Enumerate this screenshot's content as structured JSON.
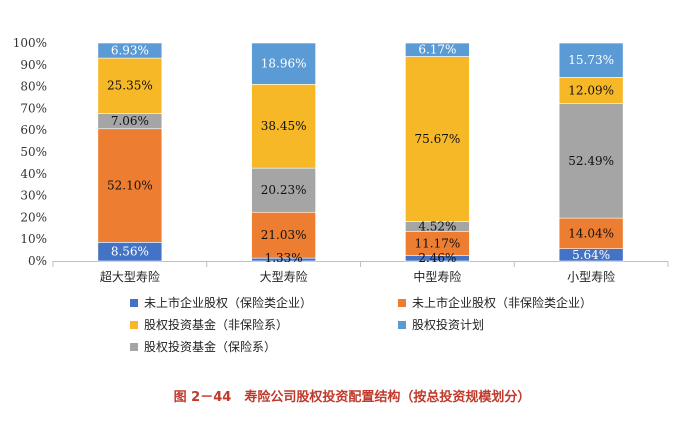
{
  "chart_data": {
    "type": "bar",
    "stacked": true,
    "categories": [
      "超大型寿险",
      "大型寿险",
      "中型寿险",
      "小型寿险"
    ],
    "ylim": [
      0,
      100
    ],
    "yticks": [
      "0%",
      "10%",
      "20%",
      "30%",
      "40%",
      "50%",
      "60%",
      "70%",
      "80%",
      "90%",
      "100%"
    ],
    "series": [
      {
        "name": "未上市企业股权（保险类企业）",
        "color": "#4472c4",
        "values": [
          8.56,
          1.33,
          2.46,
          5.64
        ],
        "labels": [
          "8.56%",
          "1.33%",
          "2.46%",
          "5.64%"
        ]
      },
      {
        "name": "未上市企业股权（非保险类企业）",
        "color": "#ed7d31",
        "values": [
          52.1,
          21.03,
          11.17,
          14.04
        ],
        "labels": [
          "52.10%",
          "21.03%",
          "11.17%",
          "14.04%"
        ]
      },
      {
        "name": "股权投资基金（保险系）",
        "color": "#a5a5a5",
        "values": [
          7.06,
          20.23,
          4.52,
          52.49
        ],
        "labels": [
          "7.06%",
          "20.23%",
          "4.52%",
          "52.49%"
        ]
      },
      {
        "name": "股权投资基金（非保险系）",
        "color": "#f6b826",
        "values": [
          25.35,
          38.45,
          75.67,
          12.09
        ],
        "labels": [
          "25.35%",
          "38.45%",
          "75.67%",
          "12.09%"
        ]
      },
      {
        "name": "股权投资计划",
        "color": "#5b9bd5",
        "values": [
          6.93,
          18.96,
          6.17,
          15.73
        ],
        "labels": [
          "6.93%",
          "18.96%",
          "6.17%",
          "15.73%"
        ]
      }
    ],
    "legend_order": [
      0,
      1,
      3,
      4,
      2
    ],
    "legend_placement": "bottom",
    "grid": false
  },
  "caption": "图 2－44　寿险公司股权投资配置结构（按总投资规模划分）"
}
